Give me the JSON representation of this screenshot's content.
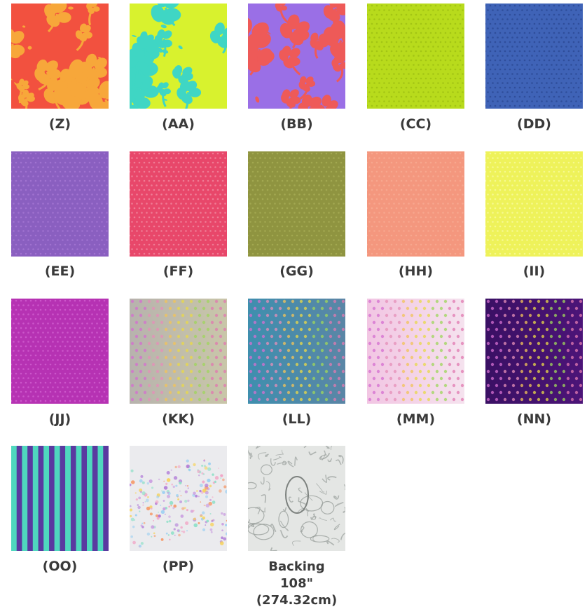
{
  "swatches": [
    {
      "label": "(Z)",
      "pattern": "floral",
      "colors": [
        "#f2513f",
        "#f7a73a"
      ]
    },
    {
      "label": "(AA)",
      "pattern": "floral",
      "colors": [
        "#d8f22e",
        "#3fd6c4"
      ]
    },
    {
      "label": "(BB)",
      "pattern": "floral",
      "colors": [
        "#9a6fe6",
        "#ee5a58"
      ]
    },
    {
      "label": "(CC)",
      "pattern": "dots",
      "colors": [
        "#b8db1c",
        "#9dbf14"
      ]
    },
    {
      "label": "(DD)",
      "pattern": "dots",
      "colors": [
        "#3f63b7",
        "#2c4894"
      ]
    },
    {
      "label": "(EE)",
      "pattern": "dots",
      "colors": [
        "#8a5fc0",
        "#a577d3"
      ]
    },
    {
      "label": "(FF)",
      "pattern": "dots",
      "colors": [
        "#e8476a",
        "#f08aa0"
      ]
    },
    {
      "label": "(GG)",
      "pattern": "dots",
      "colors": [
        "#8f9440",
        "#a6ac55"
      ]
    },
    {
      "label": "(HH)",
      "pattern": "dots",
      "colors": [
        "#f4977e",
        "#f7ab94"
      ]
    },
    {
      "label": "(II)",
      "pattern": "dots",
      "colors": [
        "#eef25a",
        "#f7fa9c"
      ]
    },
    {
      "label": "(JJ)",
      "pattern": "dots",
      "colors": [
        "#b632b3",
        "#d15fcf"
      ]
    },
    {
      "label": "(KK)",
      "pattern": "ombre",
      "colors": [
        "#b7b3ad",
        "#c9c6a9"
      ]
    },
    {
      "label": "(LL)",
      "pattern": "ombre",
      "colors": [
        "#3f8fae",
        "#5a86a6"
      ]
    },
    {
      "label": "(MM)",
      "pattern": "ombre",
      "colors": [
        "#f2c6e3",
        "#f5e2ee"
      ]
    },
    {
      "label": "(NN)",
      "pattern": "ombre",
      "colors": [
        "#3a1064",
        "#4c1478"
      ]
    },
    {
      "label": "(OO)",
      "pattern": "stripe",
      "colors": [
        "#4fd8be",
        "#5a3aa0"
      ]
    },
    {
      "label": "(PP)",
      "pattern": "speckle",
      "colors": [
        "#ebebee",
        "#c99de0"
      ]
    },
    {
      "label": "Backing\n108\"\n(274.32cm)",
      "pattern": "toile",
      "colors": [
        "#e4e6e4",
        "#9aa09c"
      ]
    }
  ]
}
